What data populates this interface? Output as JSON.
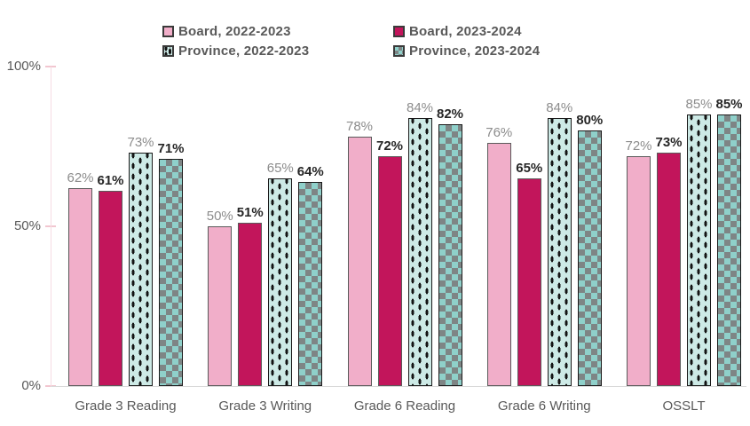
{
  "chart_data": {
    "type": "bar",
    "title": "",
    "categories": [
      "Grade 3 Reading",
      "Grade 3 Writing",
      "Grade 6 Reading",
      "Grade 6 Writing",
      "OSSLT"
    ],
    "series": [
      {
        "name": "Board, 2022-2023",
        "style": "board-prev",
        "value_label_style": "muted",
        "values": [
          62,
          50,
          78,
          76,
          72
        ]
      },
      {
        "name": "Board, 2023-2024",
        "style": "board-curr",
        "value_label_style": "strong",
        "values": [
          61,
          51,
          72,
          65,
          73
        ]
      },
      {
        "name": "Province, 2022-2023",
        "style": "province-prev",
        "value_label_style": "muted",
        "values": [
          73,
          65,
          84,
          84,
          85
        ]
      },
      {
        "name": "Province, 2023-2024",
        "style": "province-curr",
        "value_label_style": "strong",
        "values": [
          71,
          64,
          82,
          80,
          85
        ]
      }
    ],
    "value_suffix": "%",
    "y_axis": {
      "min": 0,
      "max": 100,
      "ticks": [
        {
          "value": 0,
          "label": "0%"
        },
        {
          "value": 50,
          "label": "50%"
        },
        {
          "value": 100,
          "label": "100%"
        }
      ]
    },
    "legend": {
      "position": "top",
      "columns": 2
    },
    "grid": false,
    "data_labels": true
  },
  "palette": {
    "board_prev_pink": "#F1AEC9",
    "board_curr_magenta": "#C2155B",
    "province_prev_bg": "#CDEAE6",
    "province_dash": "#141414",
    "province_curr_teal": "#8FD0CA",
    "province_checker_gray": "#7E8585",
    "bar_border_solid": "#5A5A5A",
    "bar_border_pattern": "#1A1A1A",
    "value_label_muted": "#8C8C8C",
    "value_label_strong": "#262626",
    "axis_text": "#595959",
    "legend_text": "#595959",
    "axis_line": "#F6DCE3",
    "tick_mark": "#F2C6D0",
    "baseline": "#D9D9D9"
  }
}
